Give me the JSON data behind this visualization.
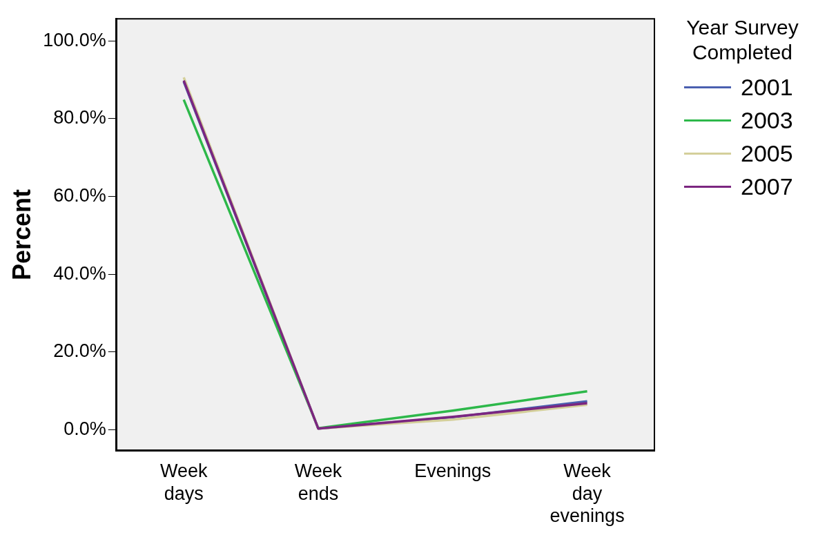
{
  "chart_data": {
    "type": "line",
    "ylabel": "Percent",
    "legend_title": "Year Survey Completed",
    "legend": "right",
    "categories": [
      "Week days",
      "Week ends",
      "Evenings",
      "Week day evenings"
    ],
    "ylim": [
      -5.4,
      105.7
    ],
    "yticks": [
      {
        "value": 0,
        "label": "0.0%"
      },
      {
        "value": 20,
        "label": "20.0%"
      },
      {
        "value": 40,
        "label": "40.0%"
      },
      {
        "value": 60,
        "label": "60.0%"
      },
      {
        "value": 80,
        "label": "80.0%"
      },
      {
        "value": 100,
        "label": "100.0%"
      }
    ],
    "grid": false,
    "marker": "none",
    "line_style": "solid",
    "series": [
      {
        "name": "2001",
        "color": "#4a5fb0",
        "values": [
          89.5,
          0.3,
          3.2,
          7.3
        ]
      },
      {
        "name": "2003",
        "color": "#2db84a",
        "values": [
          84.9,
          0.4,
          4.9,
          9.9
        ]
      },
      {
        "name": "2005",
        "color": "#d4cf9a",
        "values": [
          90.6,
          0.3,
          2.6,
          6.4
        ]
      },
      {
        "name": "2007",
        "color": "#7b2680",
        "values": [
          89.8,
          0.3,
          3.3,
          6.8
        ]
      }
    ]
  }
}
